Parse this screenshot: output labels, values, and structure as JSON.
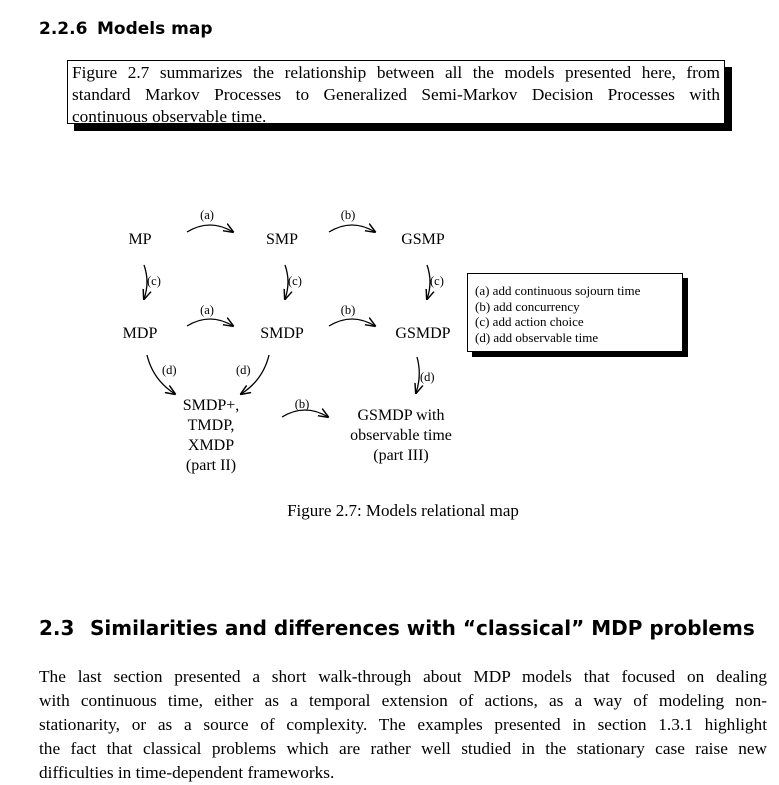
{
  "section_226": {
    "number": "2.2.6",
    "title": "Models map"
  },
  "summary_lines": [
    "Figure 2.7 summarizes the relationship between all the models presented here, from",
    "standard Markov Processes to Generalized Semi-Markov Decision Processes with",
    "continuous observable time."
  ],
  "diagram": {
    "nodes": {
      "mp": "MP",
      "smp": "SMP",
      "gsmp": "GSMP",
      "mdp": "MDP",
      "smdp": "SMDP",
      "gsmdp": "GSMDP",
      "smdp_plus": [
        "SMDP+,",
        "TMDP,",
        "XMDP",
        "(part II)"
      ],
      "gsmdp_obs": [
        "GSMDP with",
        "observable time",
        "(part III)"
      ]
    },
    "edge_labels": {
      "a": "(a)",
      "b": "(b)",
      "c": "(c)",
      "d": "(d)"
    },
    "legend": [
      "(a) add continuous sojourn time",
      "(b) add concurrency",
      "(c) add action choice",
      "(d) add observable time"
    ]
  },
  "figure_caption": "Figure 2.7: Models relational map",
  "section_23": {
    "number": "2.3",
    "title": "Similarities and differences with “classical” MDP problems"
  },
  "body_lines": [
    "The last section presented a short walk-through about MDP models that focused on dealing",
    "with continuous time, either as a temporal extension of actions, as a way of modeling non-",
    "stationarity, or as a source of complexity. The examples presented in section 1.3.1 highlight",
    "the fact that classical problems which are rather well studied in the stationary case raise new",
    "difficulties in time-dependent frameworks."
  ]
}
